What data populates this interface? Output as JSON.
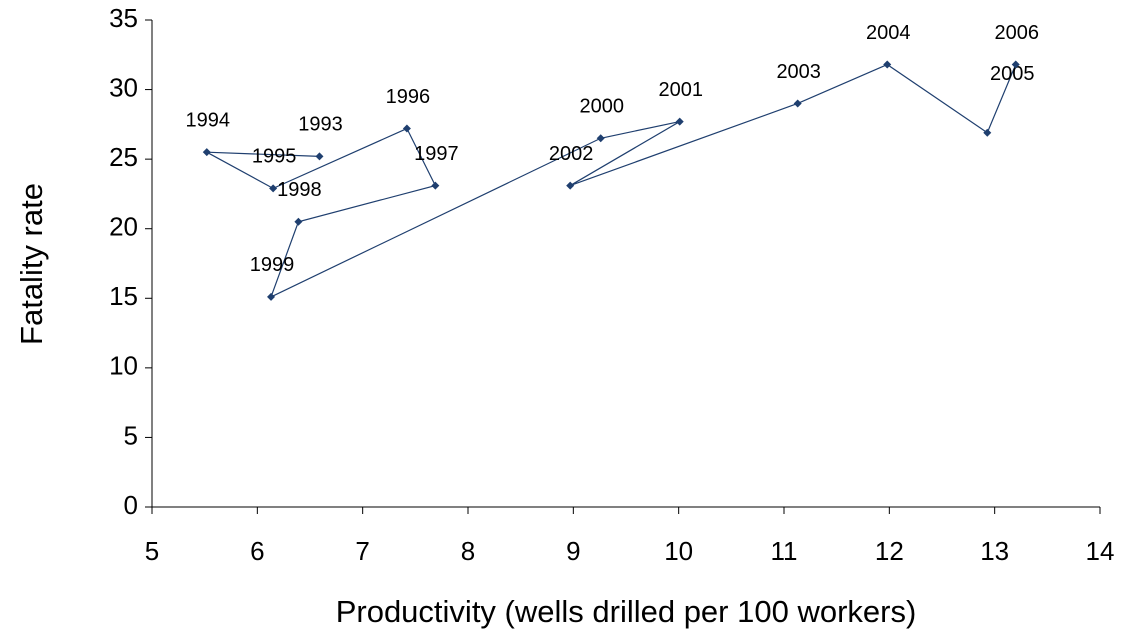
{
  "chart_data": {
    "type": "scatter",
    "xlabel": "Productivity (wells drilled per 100 workers)",
    "ylabel": "Fatality rate",
    "color": "#1f3f6f",
    "point_labels": [
      "1993",
      "1994",
      "1995",
      "1996",
      "1997",
      "1998",
      "1999",
      "2000",
      "2001",
      "2002",
      "2003",
      "2004",
      "2005",
      "2006"
    ],
    "x": [
      6.59,
      5.52,
      6.15,
      7.42,
      7.69,
      6.39,
      6.13,
      9.26,
      10.01,
      8.97,
      11.13,
      11.98,
      12.93,
      13.2
    ],
    "values": [
      25.2,
      25.5,
      22.9,
      27.2,
      23.1,
      20.5,
      15.1,
      26.5,
      27.7,
      23.1,
      29.0,
      31.8,
      26.9,
      31.8
    ],
    "xlim": [
      5,
      14
    ],
    "xticks": [
      5,
      6,
      7,
      8,
      9,
      10,
      11,
      12,
      13,
      14
    ],
    "ylim": [
      0,
      35
    ],
    "yticks": [
      0,
      5,
      10,
      15,
      20,
      25,
      30,
      35
    ],
    "grid": false
  }
}
